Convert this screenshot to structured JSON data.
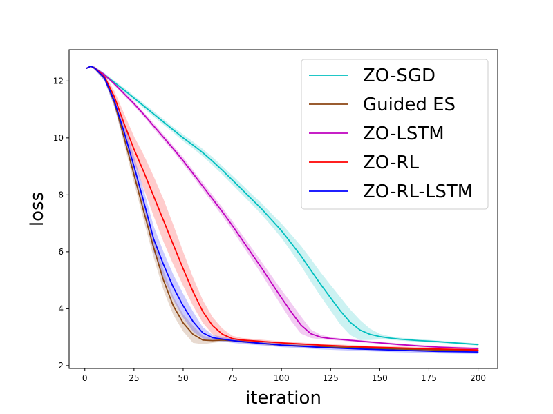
{
  "chart_data": {
    "type": "line",
    "title": "",
    "xlabel": "iteration",
    "ylabel": "loss",
    "xlim": [
      -8,
      210
    ],
    "ylim": [
      1.9,
      13.1
    ],
    "xticks": [
      0,
      25,
      50,
      75,
      100,
      125,
      150,
      175,
      200
    ],
    "yticks": [
      2,
      4,
      6,
      8,
      10,
      12
    ],
    "legend_position": "top-right",
    "series": [
      {
        "name": "ZO-SGD",
        "color": "#00bfbf",
        "x": [
          1,
          3,
          5,
          10,
          15,
          20,
          25,
          30,
          35,
          40,
          45,
          50,
          55,
          60,
          65,
          70,
          75,
          80,
          85,
          90,
          95,
          100,
          105,
          110,
          115,
          120,
          125,
          130,
          135,
          140,
          145,
          150,
          155,
          160,
          170,
          180,
          190,
          200
        ],
        "y": [
          12.45,
          12.52,
          12.45,
          12.22,
          11.95,
          11.68,
          11.4,
          11.12,
          10.84,
          10.56,
          10.28,
          10.0,
          9.75,
          9.48,
          9.18,
          8.86,
          8.52,
          8.18,
          7.84,
          7.5,
          7.12,
          6.74,
          6.3,
          5.85,
          5.35,
          4.85,
          4.38,
          3.92,
          3.52,
          3.25,
          3.1,
          3.02,
          2.97,
          2.93,
          2.88,
          2.84,
          2.79,
          2.74
        ],
        "band": [
          0.02,
          0.02,
          0.05,
          0.06,
          0.07,
          0.08,
          0.08,
          0.09,
          0.1,
          0.1,
          0.1,
          0.12,
          0.12,
          0.13,
          0.14,
          0.15,
          0.16,
          0.17,
          0.18,
          0.2,
          0.22,
          0.25,
          0.3,
          0.35,
          0.4,
          0.42,
          0.45,
          0.48,
          0.45,
          0.35,
          0.2,
          0.1,
          0.06,
          0.05,
          0.05,
          0.04,
          0.04,
          0.04
        ]
      },
      {
        "name": "Guided ES",
        "color": "#8b4513",
        "x": [
          1,
          3,
          5,
          10,
          15,
          20,
          25,
          30,
          35,
          40,
          45,
          50,
          55,
          60,
          65,
          70,
          75,
          80,
          90,
          100,
          120,
          140,
          160,
          180,
          200
        ],
        "y": [
          12.45,
          12.52,
          12.45,
          12.1,
          11.25,
          10.0,
          8.7,
          7.4,
          6.15,
          5.0,
          4.1,
          3.5,
          3.1,
          2.9,
          2.88,
          2.9,
          2.88,
          2.85,
          2.78,
          2.72,
          2.66,
          2.62,
          2.58,
          2.55,
          2.52
        ],
        "band": [
          0.02,
          0.02,
          0.05,
          0.08,
          0.15,
          0.22,
          0.28,
          0.32,
          0.35,
          0.35,
          0.32,
          0.3,
          0.3,
          0.15,
          0.08,
          0.06,
          0.05,
          0.05,
          0.05,
          0.05,
          0.04,
          0.04,
          0.04,
          0.04,
          0.04
        ]
      },
      {
        "name": "ZO-LSTM",
        "color": "#bf00bf",
        "x": [
          1,
          3,
          5,
          10,
          15,
          20,
          25,
          30,
          35,
          40,
          45,
          50,
          55,
          60,
          65,
          70,
          75,
          80,
          85,
          90,
          95,
          100,
          105,
          110,
          115,
          120,
          125,
          130,
          140,
          150,
          160,
          170,
          180,
          190,
          200
        ],
        "y": [
          12.45,
          12.52,
          12.45,
          12.22,
          11.9,
          11.55,
          11.2,
          10.82,
          10.42,
          10.02,
          9.62,
          9.2,
          8.75,
          8.3,
          7.85,
          7.4,
          6.92,
          6.42,
          5.92,
          5.42,
          4.9,
          4.38,
          3.88,
          3.42,
          3.12,
          3.0,
          2.95,
          2.92,
          2.86,
          2.8,
          2.74,
          2.69,
          2.65,
          2.62,
          2.6
        ],
        "band": [
          0.02,
          0.02,
          0.05,
          0.05,
          0.06,
          0.07,
          0.08,
          0.08,
          0.1,
          0.1,
          0.1,
          0.12,
          0.12,
          0.13,
          0.14,
          0.15,
          0.16,
          0.18,
          0.2,
          0.22,
          0.25,
          0.28,
          0.32,
          0.3,
          0.15,
          0.08,
          0.05,
          0.04,
          0.04,
          0.04,
          0.04,
          0.04,
          0.04,
          0.04,
          0.04
        ]
      },
      {
        "name": "ZO-RL",
        "color": "#ff0000",
        "x": [
          1,
          3,
          5,
          10,
          15,
          20,
          25,
          30,
          35,
          40,
          45,
          50,
          55,
          60,
          65,
          70,
          75,
          80,
          90,
          100,
          120,
          140,
          160,
          180,
          200
        ],
        "y": [
          12.45,
          12.52,
          12.45,
          12.15,
          11.45,
          10.5,
          9.6,
          8.8,
          7.95,
          7.1,
          6.25,
          5.4,
          4.6,
          3.9,
          3.4,
          3.1,
          2.95,
          2.9,
          2.85,
          2.8,
          2.72,
          2.66,
          2.62,
          2.58,
          2.55
        ],
        "band": [
          0.02,
          0.02,
          0.05,
          0.1,
          0.2,
          0.35,
          0.45,
          0.6,
          0.7,
          0.75,
          0.7,
          0.6,
          0.5,
          0.4,
          0.3,
          0.2,
          0.1,
          0.07,
          0.06,
          0.05,
          0.05,
          0.05,
          0.05,
          0.05,
          0.05
        ]
      },
      {
        "name": "ZO-RL-LSTM",
        "color": "#0000ff",
        "x": [
          1,
          3,
          5,
          10,
          15,
          20,
          25,
          30,
          35,
          40,
          45,
          50,
          55,
          60,
          65,
          70,
          75,
          80,
          90,
          100,
          120,
          140,
          160,
          180,
          200
        ],
        "y": [
          12.45,
          12.52,
          12.45,
          12.1,
          11.3,
          10.2,
          9.0,
          7.75,
          6.45,
          5.55,
          4.75,
          4.1,
          3.55,
          3.15,
          2.98,
          2.93,
          2.88,
          2.84,
          2.78,
          2.72,
          2.64,
          2.58,
          2.54,
          2.5,
          2.48
        ],
        "band": [
          0.02,
          0.02,
          0.05,
          0.1,
          0.2,
          0.3,
          0.35,
          0.4,
          0.45,
          0.45,
          0.45,
          0.42,
          0.35,
          0.2,
          0.1,
          0.08,
          0.08,
          0.08,
          0.07,
          0.07,
          0.07,
          0.07,
          0.07,
          0.07,
          0.07
        ]
      }
    ]
  }
}
